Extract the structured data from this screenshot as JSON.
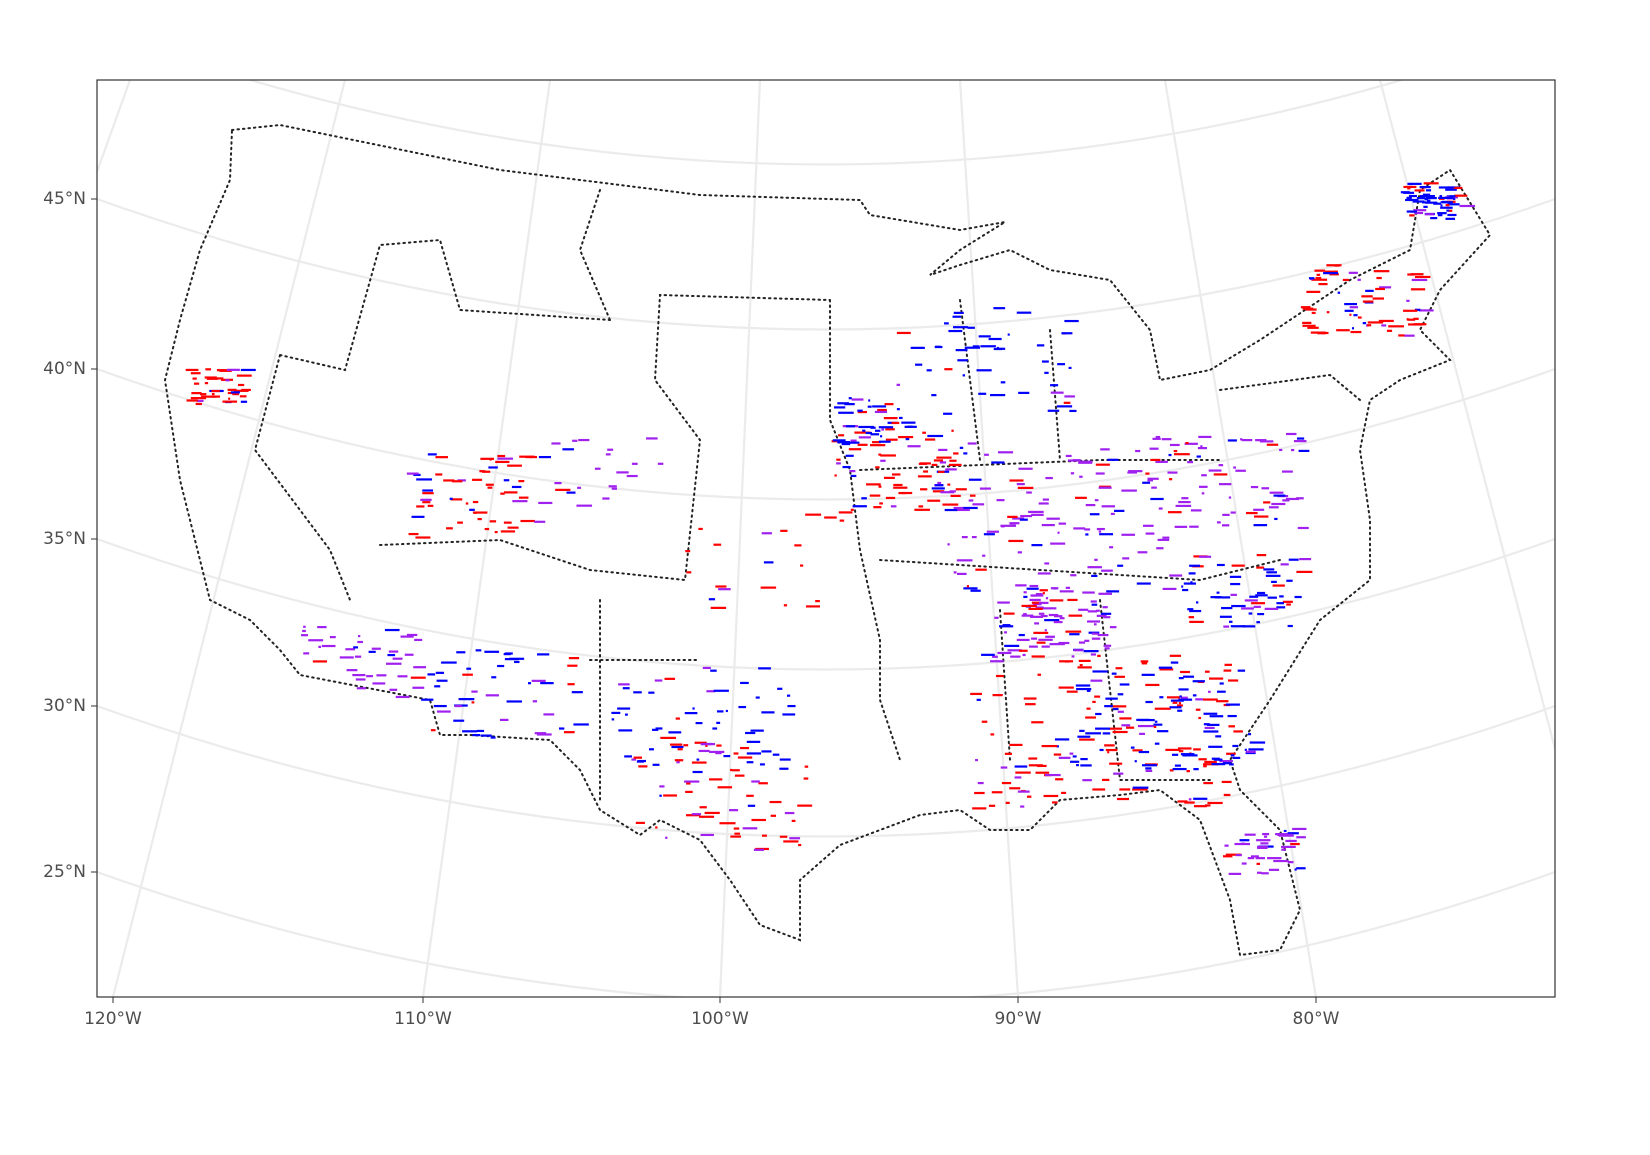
{
  "map": {
    "y_axis_labels": [
      "45°N",
      "40°N",
      "35°N",
      "30°N",
      "25°N"
    ],
    "x_axis_labels": [
      "120°W",
      "110°W",
      "100°W",
      "90°W",
      "80°W"
    ]
  }
}
